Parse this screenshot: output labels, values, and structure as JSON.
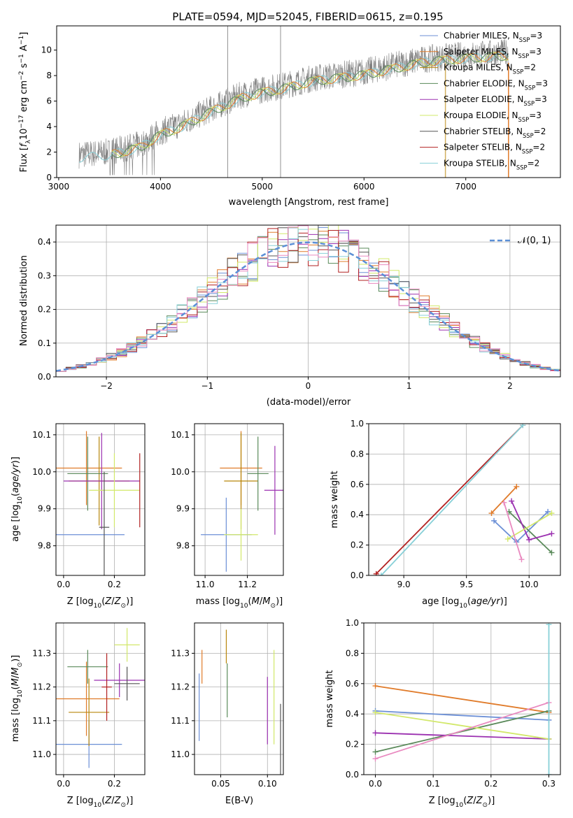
{
  "figure": {
    "title": "PLATE=0594, MJD=52045, FIBERID=0615, z=0.195"
  },
  "colors": {
    "series": [
      "#6b8fd6",
      "#e07b2a",
      "#b8860b",
      "#5a8a5a",
      "#9b30b0",
      "#d2e86a",
      "#555555",
      "#b22222",
      "#88d0d8",
      "#e98ac0",
      "#2e7d7d"
    ],
    "spectrum": "#808080",
    "normal_curve": "#5b8fd6",
    "grid": "#b0b0b0"
  },
  "chart_data": [
    {
      "id": "spectrum",
      "type": "line",
      "xlabel": "wavelength [Angstrom, rest frame]",
      "ylabel": "Flux [f_λ10^-17 erg cm^-2 s^-1 A^-1]",
      "xlim": [
        2980,
        7930
      ],
      "ylim": [
        0,
        11.9
      ],
      "xticks": [
        3000,
        4000,
        5000,
        6000,
        7000
      ],
      "yticks": [
        0,
        2,
        4,
        6,
        8,
        10
      ],
      "grid": false,
      "legend_placement": "right",
      "legend": [
        {
          "label": "Chabrier MILES, N",
          "sub": "SSP",
          "tail": "=3"
        },
        {
          "label": "Salpeter MILES, N",
          "sub": "SSP",
          "tail": "=3"
        },
        {
          "label": "Kroupa MILES, N",
          "sub": "SSP",
          "tail": "=2"
        },
        {
          "label": "Chabrier ELODIE, N",
          "sub": "SSP",
          "tail": "=3"
        },
        {
          "label": "Salpeter ELODIE, N",
          "sub": "SSP",
          "tail": "=3"
        },
        {
          "label": "Kroupa ELODIE, N",
          "sub": "SSP",
          "tail": "=3"
        },
        {
          "label": "Chabrier STELIB, N",
          "sub": "SSP",
          "tail": "=2"
        },
        {
          "label": "Salpeter STELIB, N",
          "sub": "SSP",
          "tail": "=2"
        },
        {
          "label": "Kroupa STELIB, N",
          "sub": "SSP",
          "tail": "=2"
        }
      ],
      "data_envelope": {
        "x": [
          3200,
          3500,
          3800,
          4000,
          4200,
          4500,
          4800,
          5000,
          5200,
          5500,
          5800,
          6000,
          6300,
          6600,
          7000,
          7400
        ],
        "y": [
          1.8,
          2.0,
          2.6,
          3.6,
          4.2,
          5.4,
          6.5,
          6.9,
          7.2,
          7.8,
          8.1,
          8.3,
          8.8,
          9.3,
          9.6,
          9.8
        ]
      }
    },
    {
      "id": "residuals",
      "type": "line",
      "xlabel": "(data-model)/error",
      "ylabel": "Normed distribution",
      "xlim": [
        -2.5,
        2.5
      ],
      "ylim": [
        0,
        0.45
      ],
      "xticks": [
        -2,
        -1,
        0,
        1,
        2
      ],
      "yticks": [
        0.0,
        0.1,
        0.2,
        0.3,
        0.4
      ],
      "grid": true,
      "legend_placement": "top-right",
      "legend": "𝒩(0, 1)",
      "normal": {
        "mean": 0,
        "sigma": 1
      }
    },
    {
      "id": "age_vs_Z",
      "type": "scatter",
      "xlabel": "Z [log10(Z/Z☉)]",
      "ylabel": "age [log10(age/yr)]",
      "xlim": [
        -0.03,
        0.32
      ],
      "ylim": [
        9.72,
        10.13
      ],
      "xticks": [
        0.0,
        0.2
      ],
      "yticks": [
        9.8,
        9.9,
        10.0,
        10.1
      ],
      "points": [
        {
          "x": 0.1,
          "y": 9.83,
          "xerr": 0.14,
          "yerr": 0.0
        },
        {
          "x": 0.09,
          "y": 10.01,
          "xerr": 0.14,
          "yerr": 0.1
        },
        {
          "x": 0.14,
          "y": 9.975,
          "xerr": 0.12,
          "yerr": 0.12
        },
        {
          "x": 0.095,
          "y": 9.995,
          "xerr": 0.08,
          "yerr": 0.1
        },
        {
          "x": 0.15,
          "y": 9.975,
          "xerr": 0.15,
          "yerr": 0.13
        },
        {
          "x": 0.2,
          "y": 9.95,
          "xerr": 0.1,
          "yerr": 0.1
        },
        {
          "x": 0.16,
          "y": 9.85,
          "xerr": 0.02,
          "yerr": 0.15
        },
        {
          "x": 0.3,
          "y": 9.95,
          "xerr": 0.0,
          "yerr": 0.1
        }
      ]
    },
    {
      "id": "age_vs_mass",
      "type": "scatter",
      "xlabel": "mass [log10(M/M☉)]",
      "ylabel": "",
      "xlim": [
        10.95,
        11.37
      ],
      "ylim": [
        9.72,
        10.13
      ],
      "xticks": [
        11.0,
        11.2
      ],
      "yticks": [
        9.8,
        9.9,
        10.0,
        10.1
      ],
      "points": [
        {
          "x": 11.1,
          "y": 9.83,
          "xerr": 0.12,
          "yerr": 0.1
        },
        {
          "x": 11.17,
          "y": 10.01,
          "xerr": 0.1,
          "yerr": 0.1
        },
        {
          "x": 11.17,
          "y": 9.975,
          "xerr": 0.08,
          "yerr": 0.13
        },
        {
          "x": 11.25,
          "y": 9.995,
          "xerr": 0.05,
          "yerr": 0.1
        },
        {
          "x": 11.33,
          "y": 9.95,
          "xerr": 0.05,
          "yerr": 0.12
        },
        {
          "x": 11.17,
          "y": 9.83,
          "xerr": 0.08,
          "yerr": 0.07
        }
      ]
    },
    {
      "id": "weight_vs_age",
      "type": "line",
      "xlabel": "age [log10(age/yr)]",
      "ylabel": "mass weight",
      "xlim": [
        8.72,
        10.25
      ],
      "ylim": [
        0,
        1.0
      ],
      "xticks": [
        9.0,
        9.5,
        10.0
      ],
      "yticks": [
        0.0,
        0.2,
        0.4,
        0.6,
        0.8,
        1.0
      ],
      "grid": true,
      "series": [
        {
          "x": [
            9.72,
            9.9,
            10.15
          ],
          "y": [
            0.36,
            0.22,
            0.42
          ]
        },
        {
          "x": [
            9.7,
            9.9
          ],
          "y": [
            0.41,
            0.585
          ]
        },
        {
          "x": [
            9.84,
            10.18
          ],
          "y": [
            0.42,
            0.15
          ]
        },
        {
          "x": [
            9.86,
            10.0,
            10.18
          ],
          "y": [
            0.49,
            0.235,
            0.275
          ]
        },
        {
          "x": [
            9.83,
            10.18
          ],
          "y": [
            0.24,
            0.41
          ]
        },
        {
          "x": [
            8.78,
            9.95
          ],
          "y": [
            0.01,
            0.99
          ]
        },
        {
          "x": [
            8.82,
            9.95
          ],
          "y": [
            0.0,
            0.99
          ]
        },
        {
          "x": [
            9.8,
            9.94
          ],
          "y": [
            0.48,
            0.105
          ]
        }
      ]
    },
    {
      "id": "mass_vs_Z",
      "type": "scatter",
      "xlabel": "Z [log10(Z/Z☉)]",
      "ylabel": "mass [log10(M/M☉)]",
      "xlim": [
        -0.03,
        0.32
      ],
      "ylim": [
        10.94,
        11.39
      ],
      "xticks": [
        0.0,
        0.2
      ],
      "yticks": [
        11.0,
        11.1,
        11.2,
        11.3
      ],
      "points": [
        {
          "x": 0.1,
          "y": 11.03,
          "xerr": 0.13,
          "yerr": 0.07
        },
        {
          "x": 0.09,
          "y": 11.165,
          "xerr": 0.13,
          "yerr": 0.11
        },
        {
          "x": 0.1,
          "y": 11.125,
          "xerr": 0.08,
          "yerr": 0.1
        },
        {
          "x": 0.095,
          "y": 11.26,
          "xerr": 0.08,
          "yerr": 0.05
        },
        {
          "x": 0.22,
          "y": 11.22,
          "xerr": 0.1,
          "yerr": 0.05
        },
        {
          "x": 0.25,
          "y": 11.325,
          "xerr": 0.05,
          "yerr": 0.05
        },
        {
          "x": 0.25,
          "y": 11.21,
          "xerr": 0.05,
          "yerr": 0.05
        },
        {
          "x": 0.17,
          "y": 11.2,
          "xerr": 0.02,
          "yerr": 0.1
        }
      ]
    },
    {
      "id": "mass_vs_ebv",
      "type": "scatter",
      "xlabel": "E(B-V)",
      "ylabel": "",
      "xlim": [
        0.022,
        0.117
      ],
      "ylim": [
        10.94,
        11.39
      ],
      "xticks": [
        0.05,
        0.1
      ],
      "yticks": [
        11.0,
        11.1,
        11.2,
        11.3
      ],
      "points": [
        {
          "x": 0.027,
          "y": 11.14,
          "xerr": 0,
          "yerr": 0.1
        },
        {
          "x": 0.03,
          "y": 11.26,
          "xerr": 0,
          "yerr": 0.05
        },
        {
          "x": 0.056,
          "y": 11.32,
          "xerr": 0,
          "yerr": 0.05
        },
        {
          "x": 0.057,
          "y": 11.19,
          "xerr": 0,
          "yerr": 0.08
        },
        {
          "x": 0.1,
          "y": 11.13,
          "xerr": 0,
          "yerr": 0.1
        },
        {
          "x": 0.107,
          "y": 11.17,
          "xerr": 0,
          "yerr": 0.14
        },
        {
          "x": 0.114,
          "y": 11.03,
          "xerr": 0,
          "yerr": 0.12
        }
      ]
    },
    {
      "id": "weight_vs_Z",
      "type": "line",
      "xlabel": "Z [log10(Z/Z☉)]",
      "ylabel": "mass weight",
      "xlim": [
        -0.02,
        0.32
      ],
      "ylim": [
        0,
        1.0
      ],
      "xticks": [
        0.0,
        0.1,
        0.2,
        0.3
      ],
      "yticks": [
        0.0,
        0.2,
        0.4,
        0.6,
        0.8,
        1.0
      ],
      "grid": true,
      "series": [
        {
          "x": [
            0.0,
            0.3
          ],
          "y": [
            0.585,
            0.41
          ]
        },
        {
          "x": [
            0.0,
            0.3
          ],
          "y": [
            0.42,
            0.36
          ]
        },
        {
          "x": [
            0.0,
            0.3
          ],
          "y": [
            0.15,
            0.42
          ]
        },
        {
          "x": [
            0.0,
            0.3
          ],
          "y": [
            0.275,
            0.235
          ]
        },
        {
          "x": [
            0.0,
            0.3
          ],
          "y": [
            0.41,
            0.235
          ]
        },
        {
          "x": [
            0.0,
            0.3
          ],
          "y": [
            0.105,
            0.475
          ]
        },
        {
          "x": [
            0.3,
            0.3
          ],
          "y": [
            0.0,
            0.99
          ]
        }
      ]
    }
  ]
}
